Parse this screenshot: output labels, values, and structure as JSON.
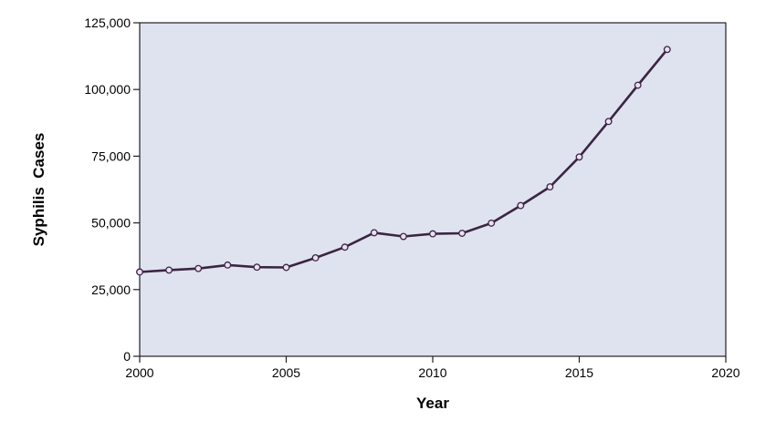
{
  "chart_data": {
    "type": "line",
    "title": "",
    "xlabel": "Year",
    "ylabel": "Syphilis  Cases",
    "xlim": [
      2000,
      2020
    ],
    "ylim": [
      0,
      125000
    ],
    "x_ticks": [
      2000,
      2005,
      2010,
      2015,
      2020
    ],
    "y_ticks": [
      0,
      25000,
      50000,
      75000,
      100000,
      125000
    ],
    "x_tick_labels": [
      "2000",
      "2005",
      "2010",
      "2015",
      "2020"
    ],
    "y_tick_labels": [
      "0",
      "25,000",
      "50,000",
      "75,000",
      "100,000",
      "125,000"
    ],
    "grid": false,
    "series": [
      {
        "x": [
          2000,
          2001,
          2002,
          2003,
          2004,
          2005,
          2006,
          2007,
          2008,
          2009,
          2010,
          2011,
          2012,
          2013,
          2014,
          2015,
          2016,
          2017,
          2018
        ],
        "values": [
          31600,
          32300,
          32900,
          34200,
          33400,
          33300,
          36900,
          40900,
          46300,
          44900,
          45900,
          46100,
          49900,
          56500,
          63500,
          74700,
          88000,
          101600,
          115000
        ]
      }
    ],
    "colors": {
      "plot_background": "#dfe3ef",
      "line": "#3b2444",
      "marker_fill": "#ebe0f0",
      "axis": "#222222"
    }
  }
}
